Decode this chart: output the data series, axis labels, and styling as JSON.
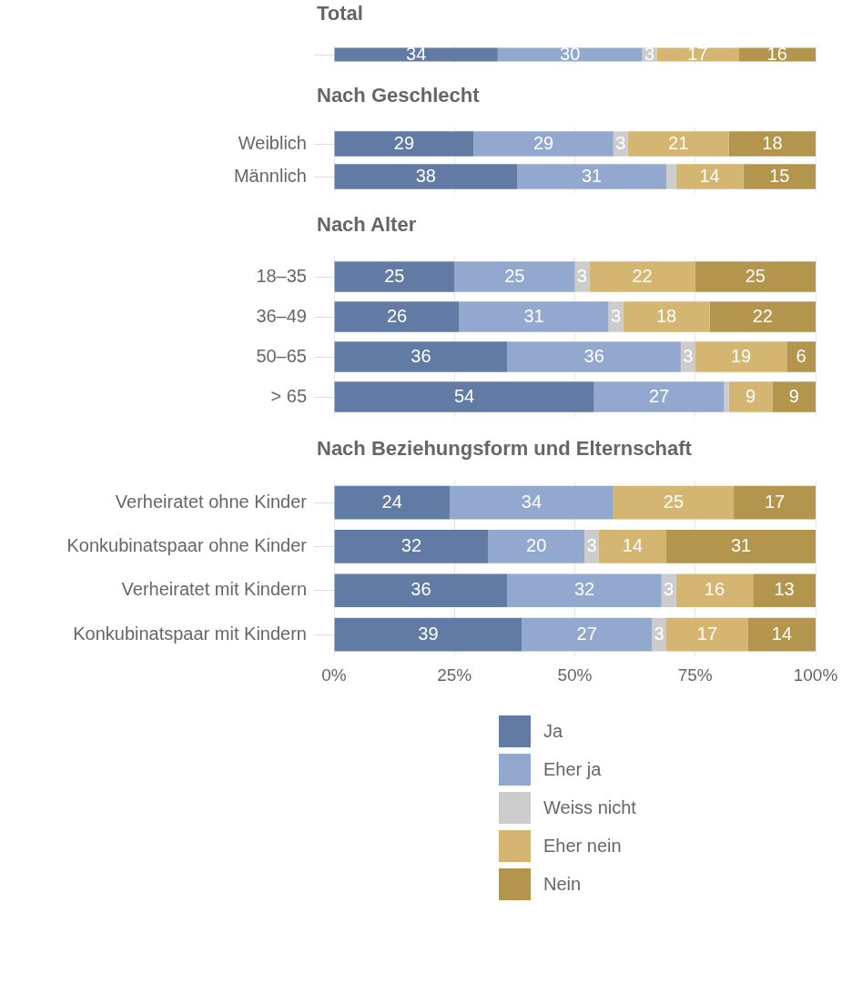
{
  "chart_data": [
    {
      "type": "bar",
      "title": "Total",
      "orientation": "horizontal",
      "stacked": true,
      "categories": [
        null
      ],
      "xlim": [
        0,
        100
      ],
      "xticks": [
        0,
        25,
        50,
        75,
        100
      ],
      "tick_labels": "y",
      "grid": true,
      "series": [
        {
          "color": "#627ba4",
          "values": [
            34
          ],
          "value_labels": [
            "34"
          ]
        },
        {
          "color": "#93a8cf",
          "values": [
            30
          ],
          "value_labels": [
            "30"
          ]
        },
        {
          "color": "#cccccc",
          "values": [
            3
          ],
          "value_labels": [
            "3"
          ]
        },
        {
          "color": "#d4b672",
          "values": [
            17
          ],
          "value_labels": [
            "17"
          ]
        },
        {
          "color": "#b3954d",
          "values": [
            16
          ],
          "value_labels": [
            "16"
          ]
        }
      ]
    },
    {
      "type": "bar",
      "title": "Nach Geschlecht",
      "orientation": "horizontal",
      "stacked": true,
      "categories": [
        "Weiblich",
        "Männlich"
      ],
      "xlim": [
        0,
        100
      ],
      "xticks": [
        0,
        25,
        50,
        75,
        100
      ],
      "tick_labels": "y",
      "grid": true,
      "series": [
        {
          "color": "#627ba4",
          "values": [
            29,
            38
          ],
          "value_labels": [
            "29",
            "38"
          ]
        },
        {
          "color": "#93a8cf",
          "values": [
            29,
            31
          ],
          "value_labels": [
            "29",
            "31"
          ]
        },
        {
          "color": "#cccccc",
          "values": [
            3,
            2
          ],
          "value_labels": [
            "3",
            null
          ]
        },
        {
          "color": "#d4b672",
          "values": [
            21,
            14
          ],
          "value_labels": [
            "21",
            "14"
          ]
        },
        {
          "color": "#b3954d",
          "values": [
            18,
            15
          ],
          "value_labels": [
            "18",
            "15"
          ]
        }
      ]
    },
    {
      "type": "bar",
      "title": "Nach Alter",
      "orientation": "horizontal",
      "stacked": true,
      "categories": [
        "18–35",
        "36–49",
        "50–65",
        "> 65"
      ],
      "xlim": [
        0,
        100
      ],
      "xticks": [
        0,
        25,
        50,
        75,
        100
      ],
      "tick_labels": "y",
      "grid": true,
      "series": [
        {
          "color": "#627ba4",
          "values": [
            25,
            26,
            36,
            54
          ],
          "value_labels": [
            "25",
            "26",
            "36",
            "54"
          ]
        },
        {
          "color": "#93a8cf",
          "values": [
            25,
            31,
            36,
            27
          ],
          "value_labels": [
            "25",
            "31",
            "36",
            "27"
          ]
        },
        {
          "color": "#cccccc",
          "values": [
            3,
            3,
            3,
            1
          ],
          "value_labels": [
            "3",
            "3",
            "3",
            null
          ]
        },
        {
          "color": "#d4b672",
          "values": [
            22,
            18,
            19,
            9
          ],
          "value_labels": [
            "22",
            "18",
            "19",
            "9"
          ]
        },
        {
          "color": "#b3954d",
          "values": [
            25,
            22,
            6,
            9
          ],
          "value_labels": [
            "25",
            "22",
            "6",
            "9"
          ]
        }
      ]
    },
    {
      "type": "bar",
      "title": "Nach Beziehungsform und Elternschaft",
      "orientation": "horizontal",
      "stacked": true,
      "categories": [
        "Verheiratet ohne Kinder",
        "Konkubinatspaar ohne Kinder",
        "Verheiratet mit Kindern",
        "Konkubinatspaar mit Kindern"
      ],
      "xlim": [
        0,
        100
      ],
      "xticks": [
        {
          "value": 0,
          "label": "0%"
        },
        {
          "value": 25,
          "label": "25%"
        },
        {
          "value": 50,
          "label": "50%"
        },
        {
          "value": 75,
          "label": "75%"
        },
        {
          "value": 100,
          "label": "100%"
        }
      ],
      "grid": true,
      "legend": "bottom",
      "series": [
        {
          "name": "Ja",
          "color": "#627ba4",
          "values": [
            24,
            32,
            36,
            39
          ],
          "value_labels": [
            "24",
            "32",
            "36",
            "39"
          ]
        },
        {
          "name": "Eher ja",
          "color": "#93a8cf",
          "values": [
            34,
            20,
            32,
            27
          ],
          "value_labels": [
            "34",
            "20",
            "32",
            "27"
          ]
        },
        {
          "name": "Weiss nicht",
          "color": "#cccccc",
          "values": [
            0,
            3,
            3,
            3
          ],
          "value_labels": [
            null,
            "3",
            "3",
            "3"
          ]
        },
        {
          "name": "Eher nein",
          "color": "#d4b672",
          "values": [
            25,
            14,
            16,
            17
          ],
          "value_labels": [
            "25",
            "14",
            "16",
            "17"
          ]
        },
        {
          "name": "Nein",
          "color": "#b3954d",
          "values": [
            17,
            31,
            13,
            14
          ],
          "value_labels": [
            "17",
            "31",
            "13",
            "14"
          ]
        }
      ]
    }
  ]
}
